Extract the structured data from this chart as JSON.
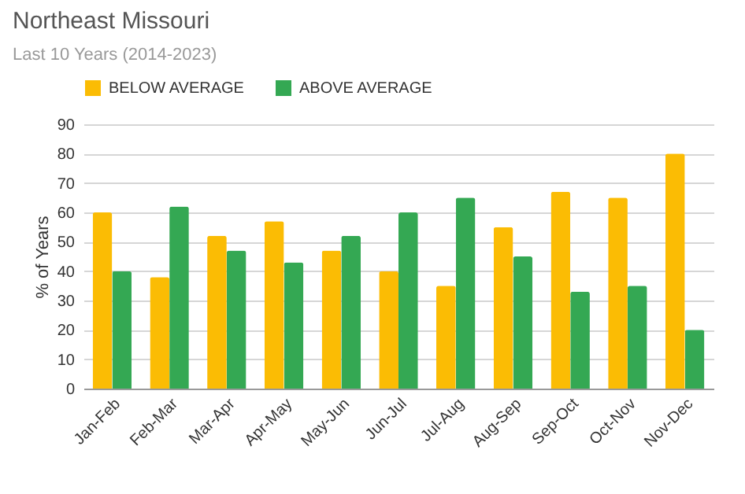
{
  "chart_data": {
    "type": "bar",
    "title": "Northeast Missouri",
    "subtitle": "Last 10 Years (2014-2023)",
    "ylabel": "% of Years",
    "categories": [
      "Jan-Feb",
      "Feb-Mar",
      "Mar-Apr",
      "Apr-May",
      "May-Jun",
      "Jun-Jul",
      "Jul-Aug",
      "Aug-Sep",
      "Sep-Oct",
      "Oct-Nov",
      "Nov-Dec"
    ],
    "series": [
      {
        "name": "BELOW AVERAGE",
        "color": "#fbbc04",
        "values": [
          60,
          38,
          52,
          57,
          47,
          40,
          35,
          55,
          67,
          65,
          80
        ]
      },
      {
        "name": "ABOVE AVERAGE",
        "color": "#34a853",
        "values": [
          40,
          62,
          47,
          43,
          52,
          60,
          65,
          45,
          33,
          35,
          20
        ]
      }
    ],
    "ylim": [
      0,
      90
    ],
    "yticks": [
      0,
      10,
      20,
      30,
      40,
      50,
      60,
      70,
      80,
      90
    ],
    "grid": "y",
    "legend": "top"
  }
}
